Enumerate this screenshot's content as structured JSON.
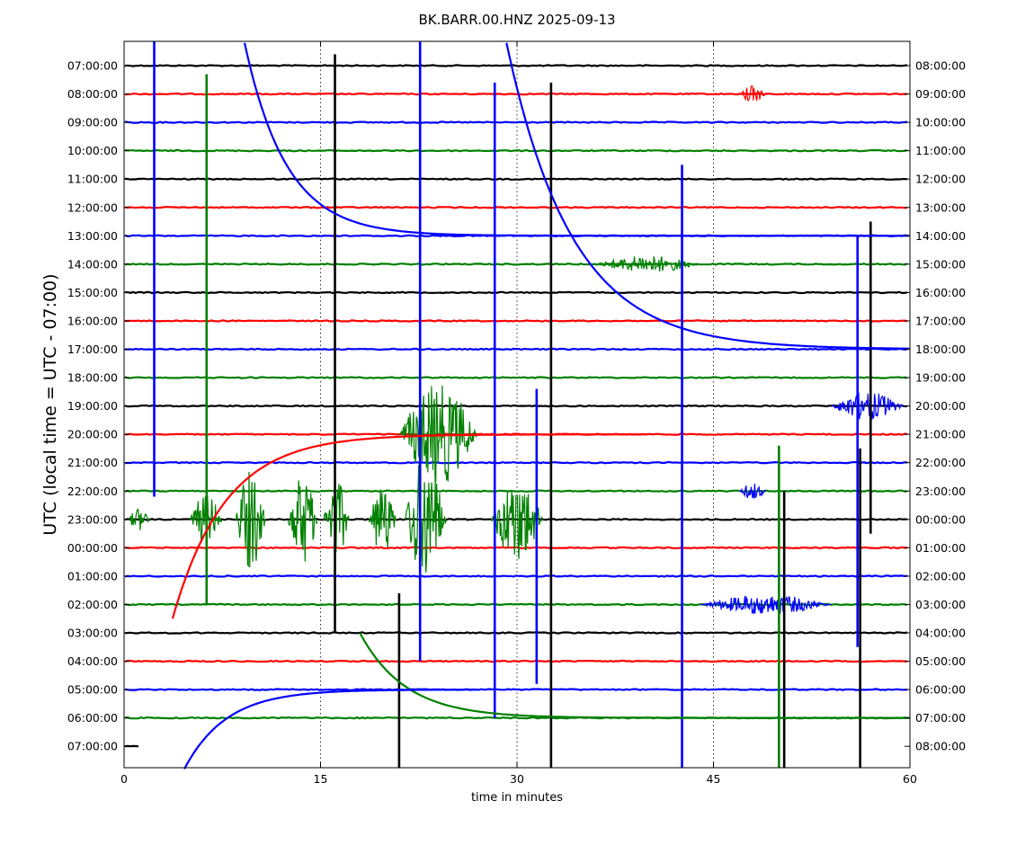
{
  "chart_data": {
    "type": "line",
    "title": "BK.BARR.00.HNZ 2025-09-13",
    "xlabel": "time in minutes",
    "ylabel": "UTC (local time = UTC - 07:00)",
    "xlim": [
      0,
      60
    ],
    "x_ticks": [
      0,
      15,
      30,
      45,
      60
    ],
    "x_tick_labels": [
      "0",
      "15",
      "30",
      "45",
      "60"
    ],
    "x_grid": "dotted vertical lines at 15, 30, 45",
    "left_labels": [
      "07:00:00",
      "08:00:00",
      "09:00:00",
      "10:00:00",
      "11:00:00",
      "12:00:00",
      "13:00:00",
      "14:00:00",
      "15:00:00",
      "16:00:00",
      "17:00:00",
      "18:00:00",
      "19:00:00",
      "20:00:00",
      "21:00:00",
      "22:00:00",
      "23:00:00",
      "00:00:00",
      "01:00:00",
      "02:00:00",
      "03:00:00",
      "04:00:00",
      "05:00:00",
      "06:00:00",
      "07:00:00"
    ],
    "right_labels": [
      "08:00:00",
      "09:00:00",
      "10:00:00",
      "11:00:00",
      "12:00:00",
      "13:00:00",
      "14:00:00",
      "15:00:00",
      "16:00:00",
      "17:00:00",
      "18:00:00",
      "19:00:00",
      "20:00:00",
      "21:00:00",
      "22:00:00",
      "23:00:00",
      "00:00:00",
      "01:00:00",
      "02:00:00",
      "03:00:00",
      "04:00:00",
      "05:00:00",
      "06:00:00",
      "07:00:00",
      "08:00:00"
    ],
    "trace_colors": [
      "#000000",
      "#ff0000",
      "#0000ff",
      "#008000"
    ],
    "spikes": [
      {
        "t": 2.3,
        "row": 8,
        "color": "#0000ff",
        "up": 36.7,
        "down": 7.2
      },
      {
        "t": 6.3,
        "row": 3,
        "color": "#008000",
        "up": 2.7,
        "down": 16.0
      },
      {
        "t": 16.1,
        "row": 9,
        "color": "#000000",
        "up": 9.4,
        "down": 11.0
      },
      {
        "t": 22.6,
        "row": 10,
        "color": "#0000ff",
        "up": 11.3,
        "down": 11.0
      },
      {
        "t": 28.3,
        "row": 11,
        "color": "#0000ff",
        "up": 10.4,
        "down": 12.0
      },
      {
        "t": 32.6,
        "row": 22,
        "color": "#000000",
        "up": 21.4,
        "down": 25.0
      },
      {
        "t": 42.6,
        "row": 26,
        "color": "#0000ff",
        "up": 22.5,
        "down": 25.0
      },
      {
        "t": 50.4,
        "row": 22,
        "color": "#000000",
        "up": 7.0,
        "down": 6.0
      },
      {
        "t": 50.0,
        "row": 20,
        "color": "#008000",
        "up": 6.6,
        "down": 10.0
      },
      {
        "t": 56.2,
        "row": 21,
        "color": "#000000",
        "up": 7.5,
        "down": 6.8
      },
      {
        "t": 56.0,
        "row": 13,
        "color": "#0000ff",
        "up": 7.0,
        "down": 7.5
      },
      {
        "t": 57.0,
        "row": 12,
        "color": "#000000",
        "up": 6.5,
        "down": 4.5
      },
      {
        "t": 21.0,
        "row": 20,
        "color": "#000000",
        "up": 1.4,
        "down": 4.8
      },
      {
        "t": 31.5,
        "row": 20,
        "color": "#0000ff",
        "up": 8.6,
        "down": 1.8
      }
    ],
    "bursts": [
      {
        "t0": 5.0,
        "t1": 7.5,
        "row": 16,
        "color": "#008000",
        "amp": 0.9
      },
      {
        "t0": 8.5,
        "t1": 10.8,
        "row": 16,
        "color": "#008000",
        "amp": 1.8
      },
      {
        "t0": 12.5,
        "t1": 14.8,
        "row": 16,
        "color": "#008000",
        "amp": 1.6
      },
      {
        "t0": 15.2,
        "t1": 17.2,
        "row": 16,
        "color": "#008000",
        "amp": 1.4
      },
      {
        "t0": 18.7,
        "t1": 20.8,
        "row": 16,
        "color": "#008000",
        "amp": 1.3
      },
      {
        "t0": 21.4,
        "t1": 24.6,
        "row": 16,
        "color": "#008000",
        "amp": 2.2
      },
      {
        "t0": 28.0,
        "t1": 32.0,
        "row": 16,
        "color": "#008000",
        "amp": 1.5
      },
      {
        "t0": 36.0,
        "t1": 44.0,
        "row": 7,
        "color": "#008000",
        "amp": 0.3
      },
      {
        "t0": 47.0,
        "t1": 49.0,
        "row": 1,
        "color": "#ff0000",
        "amp": 0.3
      },
      {
        "t0": 44.0,
        "t1": 54.0,
        "row": 19,
        "color": "#0000ff",
        "amp": 0.35
      },
      {
        "t0": 47.0,
        "t1": 49.0,
        "row": 15,
        "color": "#0000ff",
        "amp": 0.3
      },
      {
        "t0": 54.0,
        "t1": 59.5,
        "row": 12,
        "color": "#0000ff",
        "amp": 0.5
      },
      {
        "t0": 21.0,
        "t1": 27.0,
        "row": 13,
        "color": "#008000",
        "amp": 1.8
      },
      {
        "t0": 0.3,
        "t1": 2.0,
        "row": 16,
        "color": "#008000",
        "amp": 0.4
      }
    ]
  }
}
